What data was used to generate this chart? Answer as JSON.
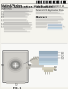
{
  "bg_color": "#f0efe8",
  "page_bg": "#f2f1ea",
  "text_color": "#555555",
  "dark_text": "#333333",
  "header_text1": "United States",
  "header_text2": "Patent Application Publication",
  "pub_label": "Pub. No.:",
  "pub_no": "US 2013/0032571 A1",
  "date_label": "Pub. Date:",
  "date": "Feb. 7, 2013",
  "fig_label": "FIG. 1",
  "line_gray": "#aaaaaa",
  "med_gray": "#888888",
  "light_gray": "#cccccc",
  "scanner_body": "#d8d8d5",
  "scanner_edge": "#888888",
  "scanner_hole": "#b0b0b0",
  "bore_dark": "#707070",
  "bore_inner": "#505050",
  "table_color": "#c8c8c5",
  "hand_color": "#d5cfc0",
  "detector_colors": [
    "#c8dce8",
    "#b8ccd8",
    "#a8bccc",
    "#c0ccd8",
    "#aabccc",
    "#98acbc"
  ],
  "detector_edge": "#557799",
  "callout_color": "#bbbbbb",
  "white": "#ffffff"
}
